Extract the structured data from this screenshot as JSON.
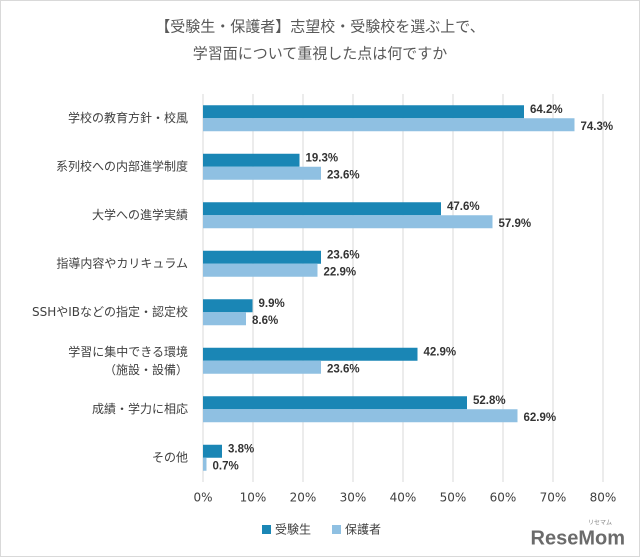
{
  "chart_data": {
    "type": "barh",
    "title": [
      "【受験生・保護者】志望校・受験校を選ぶ上で、",
      "学習面について重視した点は何ですか"
    ],
    "categories": [
      "学校の教育方針・校風",
      "系列校への内部進学制度",
      "大学への進学実績",
      "指導内容やカリキュラム",
      "SSHやIBなどの指定・認定校",
      "学習に集中できる環境\n（施設・設備）",
      "成績・学力に相応",
      "その他"
    ],
    "series": [
      {
        "name": "受験生",
        "color": "#1a86b5",
        "values": [
          64.2,
          19.3,
          47.6,
          23.6,
          9.9,
          42.9,
          52.8,
          3.8
        ],
        "value_labels": [
          "64.2%",
          "19.3%",
          "47.6%",
          "23.6%",
          "9.9%",
          "42.9%",
          "52.8%",
          "3.8%"
        ]
      },
      {
        "name": "保護者",
        "color": "#8fc0e2",
        "values": [
          74.3,
          23.6,
          57.9,
          22.9,
          8.6,
          23.6,
          62.9,
          0.7
        ],
        "value_labels": [
          "74.3%",
          "23.6%",
          "57.9%",
          "22.9%",
          "8.6%",
          "23.6%",
          "62.9%",
          "0.7%"
        ]
      }
    ],
    "xlim": [
      0,
      80
    ],
    "xticks": [
      {
        "value": 0,
        "label": "0%"
      },
      {
        "value": 10,
        "label": "10%"
      },
      {
        "value": 20,
        "label": "20%"
      },
      {
        "value": 30,
        "label": "30%"
      },
      {
        "value": 40,
        "label": "40%"
      },
      {
        "value": 50,
        "label": "50%"
      },
      {
        "value": 60,
        "label": "60%"
      },
      {
        "value": 70,
        "label": "70%"
      },
      {
        "value": 80,
        "label": "80%"
      }
    ],
    "grid": true,
    "legend": "bottom",
    "watermark": "ReseMom",
    "watermark_kana": "リセマム"
  }
}
